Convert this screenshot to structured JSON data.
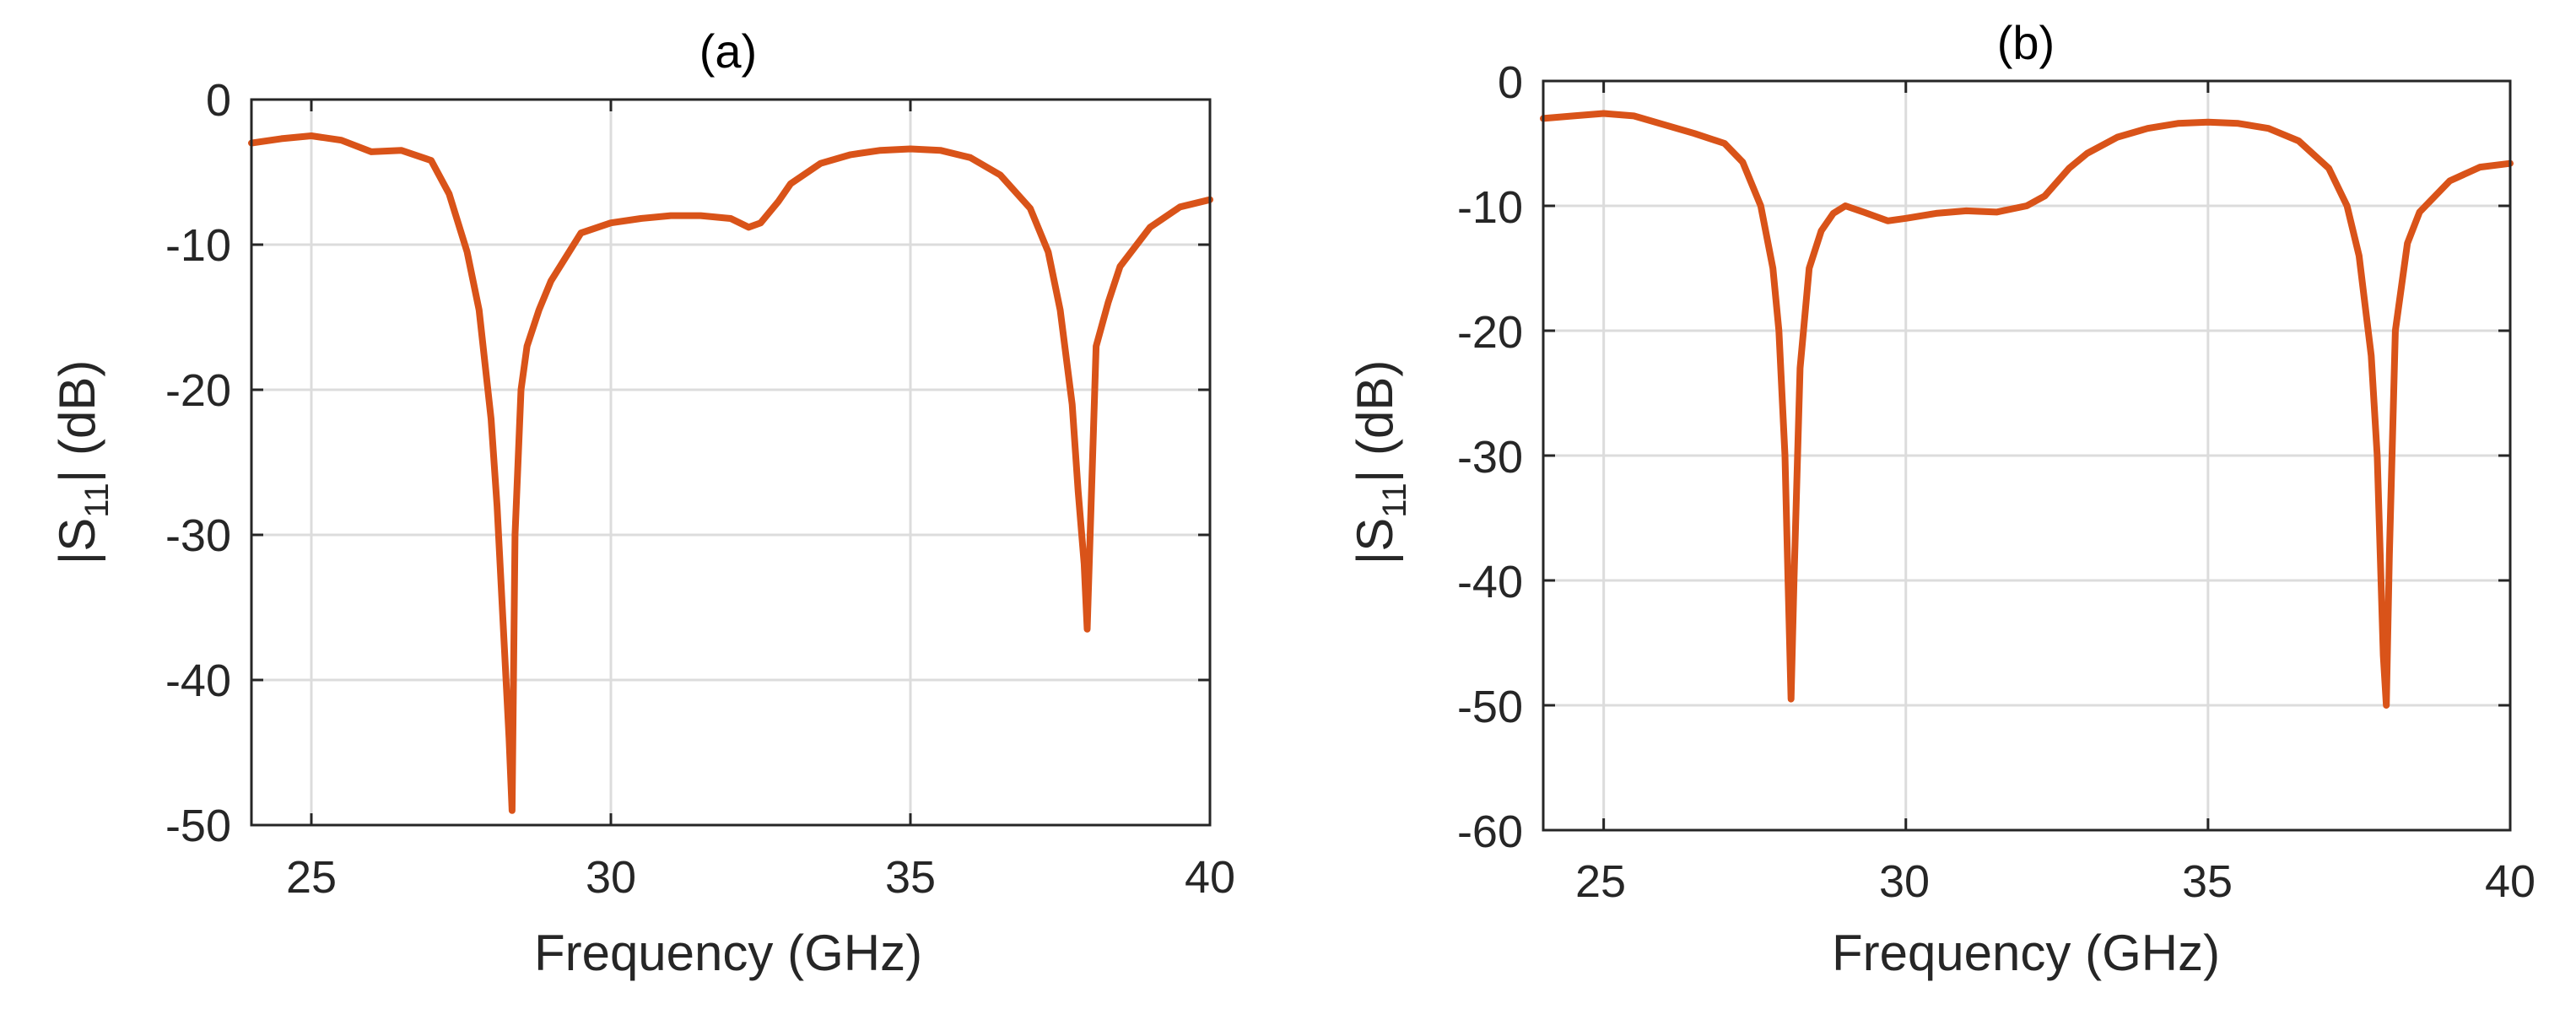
{
  "colors": {
    "curve": "#D95319",
    "grid": "#DCDCDC",
    "axis": "#262626"
  },
  "chart_data": [
    {
      "type": "line",
      "title": "(a)",
      "xlabel": "Frequency (GHz)",
      "ylabel_prefix": "|S",
      "ylabel_sub": "11",
      "ylabel_suffix": "| (dB)",
      "xlim": [
        24,
        40
      ],
      "ylim": [
        -50,
        0
      ],
      "xticks": [
        25,
        30,
        35,
        40
      ],
      "yticks": [
        0,
        -10,
        -20,
        -30,
        -40,
        -50
      ],
      "xtick_labels": [
        "25",
        "30",
        "35",
        "40"
      ],
      "ytick_labels": [
        "0",
        "-10",
        "-20",
        "-30",
        "-40",
        "-50"
      ],
      "grid": true,
      "series": [
        {
          "name": "|S11|",
          "x": [
            24,
            24.5,
            25,
            25.5,
            26,
            26.5,
            27,
            27.3,
            27.6,
            27.8,
            28.0,
            28.1,
            28.2,
            28.3,
            28.35,
            28.4,
            28.5,
            28.6,
            28.8,
            29.0,
            29.5,
            30.0,
            30.5,
            31,
            31.5,
            32,
            32.3,
            32.5,
            32.8,
            33,
            33.5,
            34,
            34.5,
            35,
            35.5,
            36,
            36.5,
            37,
            37.3,
            37.5,
            37.7,
            37.8,
            37.9,
            37.95,
            38.0,
            38.1,
            38.3,
            38.5,
            39,
            39.5,
            40
          ],
          "y": [
            -3.0,
            -2.7,
            -2.5,
            -2.8,
            -3.6,
            -3.5,
            -4.2,
            -6.5,
            -10.5,
            -14.5,
            -22,
            -28,
            -36,
            -44,
            -49,
            -30,
            -20,
            -17,
            -14.5,
            -12.5,
            -9.2,
            -8.5,
            -8.2,
            -8.0,
            -8.0,
            -8.2,
            -8.8,
            -8.5,
            -7.0,
            -5.8,
            -4.4,
            -3.8,
            -3.5,
            -3.4,
            -3.5,
            -4.0,
            -5.2,
            -7.5,
            -10.5,
            -14.5,
            -21,
            -27,
            -32,
            -36.5,
            -30,
            -17,
            -14,
            -11.5,
            -8.8,
            -7.4,
            -6.9
          ]
        }
      ]
    },
    {
      "type": "line",
      "title": "(b)",
      "xlabel": "Frequency (GHz)",
      "ylabel_prefix": "|S",
      "ylabel_sub": "11",
      "ylabel_suffix": "| (dB)",
      "xlim": [
        24,
        40
      ],
      "ylim": [
        -60,
        0
      ],
      "xticks": [
        25,
        30,
        35,
        40
      ],
      "yticks": [
        0,
        -10,
        -20,
        -30,
        -40,
        -50,
        -60
      ],
      "xtick_labels": [
        "25",
        "30",
        "35",
        "40"
      ],
      "ytick_labels": [
        "0",
        "-10",
        "-20",
        "-30",
        "-40",
        "-50",
        "-60"
      ],
      "grid": true,
      "series": [
        {
          "name": "|S11|",
          "x": [
            24,
            24.5,
            25,
            25.5,
            26,
            26.5,
            27,
            27.3,
            27.6,
            27.8,
            27.9,
            28.0,
            28.05,
            28.1,
            28.15,
            28.25,
            28.4,
            28.6,
            28.8,
            29.0,
            29.3,
            29.7,
            30,
            30.5,
            31,
            31.5,
            32,
            32.3,
            32.7,
            33,
            33.5,
            34,
            34.5,
            35,
            35.5,
            36,
            36.5,
            37,
            37.3,
            37.5,
            37.7,
            37.8,
            37.85,
            37.9,
            37.95,
            38.0,
            38.1,
            38.3,
            38.5,
            39,
            39.5,
            40
          ],
          "y": [
            -3.0,
            -2.8,
            -2.6,
            -2.8,
            -3.5,
            -4.2,
            -5.0,
            -6.5,
            -10,
            -15,
            -20,
            -30,
            -40,
            -49.5,
            -40,
            -23,
            -15,
            -12,
            -10.6,
            -10,
            -10.5,
            -11.2,
            -11,
            -10.6,
            -10.4,
            -10.5,
            -10,
            -9.2,
            -7.0,
            -5.8,
            -4.5,
            -3.8,
            -3.4,
            -3.3,
            -3.4,
            -3.8,
            -4.8,
            -7.0,
            -10,
            -14,
            -22,
            -30,
            -38,
            -46,
            -50,
            -38,
            -20,
            -13,
            -10.5,
            -8,
            -6.9,
            -6.6
          ]
        }
      ]
    }
  ]
}
